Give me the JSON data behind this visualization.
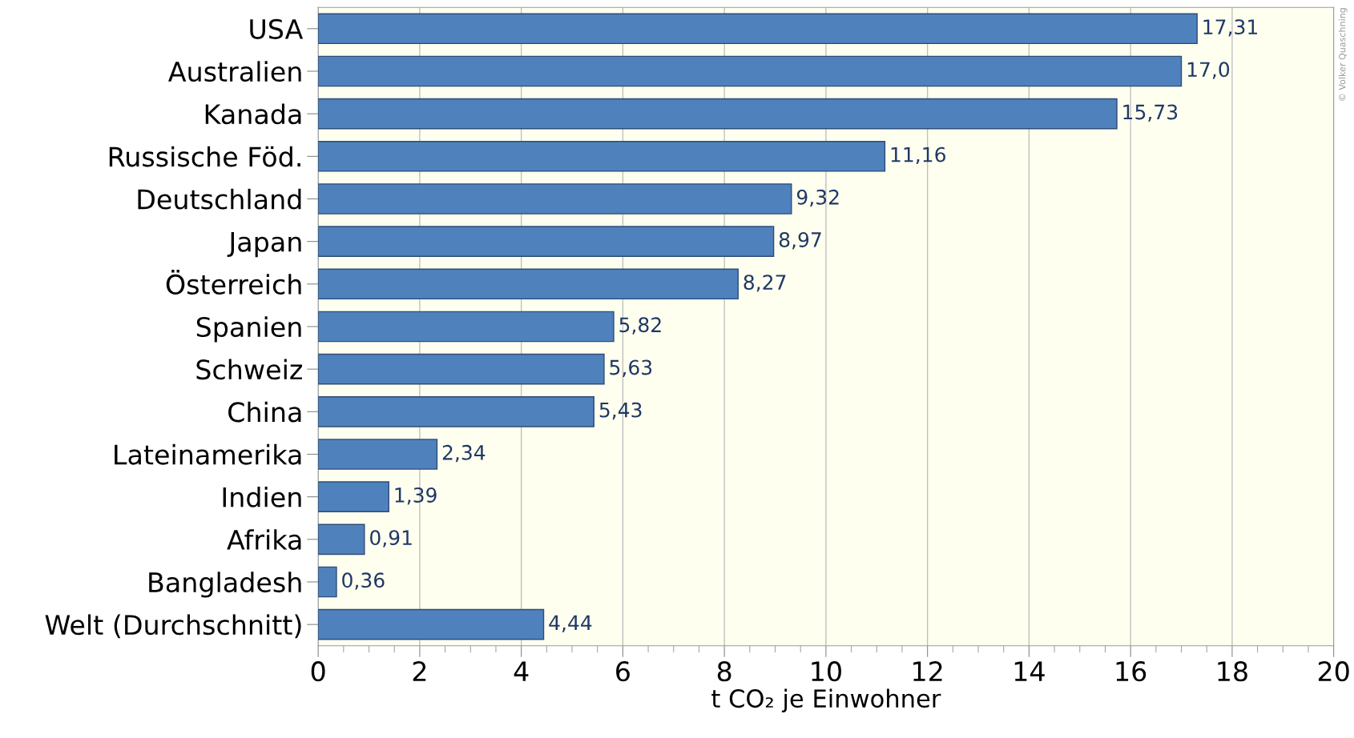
{
  "chart_data": {
    "type": "bar",
    "orientation": "horizontal",
    "xlabel": "t CO₂ je Einwohner",
    "categories": [
      "USA",
      "Australien",
      "Kanada",
      "Russische Föd.",
      "Deutschland",
      "Japan",
      "Österreich",
      "Spanien",
      "Schweiz",
      "China",
      "Lateinamerika",
      "Indien",
      "Afrika",
      "Bangladesh",
      "Welt (Durchschnitt)"
    ],
    "values": [
      17.31,
      17.0,
      15.73,
      11.16,
      9.32,
      8.97,
      8.27,
      5.82,
      5.63,
      5.43,
      2.34,
      1.39,
      0.91,
      0.36,
      4.44
    ],
    "value_labels": [
      "17,31",
      "17,0",
      "15,73",
      "11,16",
      "9,32",
      "8,97",
      "8,27",
      "5,82",
      "5,63",
      "5,43",
      "2,34",
      "1,39",
      "0,91",
      "0,36",
      "4,44"
    ],
    "color": "#4f81bd",
    "xlim": [
      0,
      20
    ],
    "xticks": [
      0,
      2,
      4,
      6,
      8,
      10,
      12,
      14,
      16,
      18,
      20
    ],
    "grid": "x",
    "annotations": [
      "© Volker Quaschning"
    ]
  }
}
